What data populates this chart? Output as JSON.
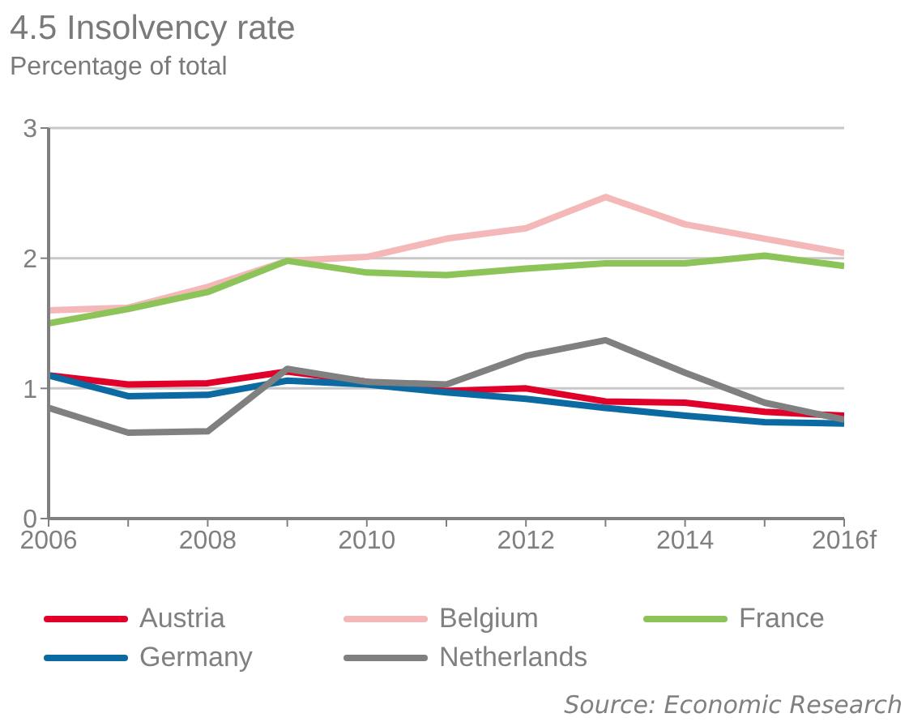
{
  "chart_data": {
    "type": "line",
    "title": "4.5 Insolvency rate",
    "subtitle": "Percentage of total",
    "categories": [
      "2006",
      null,
      "2008",
      null,
      "2010",
      null,
      "2012",
      null,
      "2014",
      null,
      "2016f"
    ],
    "series": [
      {
        "name": "Austria",
        "color": "#e0002a",
        "values": [
          1.1,
          1.03,
          1.04,
          1.13,
          1.05,
          0.98,
          1.0,
          0.9,
          0.89,
          0.82,
          0.79
        ]
      },
      {
        "name": "Belgium",
        "color": "#f5b8b8",
        "values": [
          1.6,
          1.62,
          1.78,
          1.98,
          2.01,
          2.15,
          2.23,
          2.47,
          2.26,
          2.15,
          2.04
        ]
      },
      {
        "name": "France",
        "color": "#8dc45a",
        "values": [
          1.5,
          1.61,
          1.74,
          1.98,
          1.89,
          1.87,
          1.92,
          1.96,
          1.96,
          2.02,
          1.94
        ]
      },
      {
        "name": "Germany",
        "color": "#0a6aa1",
        "values": [
          1.1,
          0.94,
          0.95,
          1.06,
          1.03,
          0.97,
          0.92,
          0.85,
          0.79,
          0.74,
          0.73
        ]
      },
      {
        "name": "Netherlands",
        "color": "#808080",
        "values": [
          0.85,
          0.66,
          0.67,
          1.15,
          1.05,
          1.03,
          1.25,
          1.37,
          1.12,
          0.89,
          0.76
        ]
      }
    ],
    "ylim": [
      0,
      3
    ],
    "yticks": [
      0,
      1,
      2,
      3
    ],
    "grid": "y",
    "legend": "bottom",
    "marker": "none",
    "line_style": "solid",
    "annotations": [
      "Source: Economic Research"
    ]
  }
}
